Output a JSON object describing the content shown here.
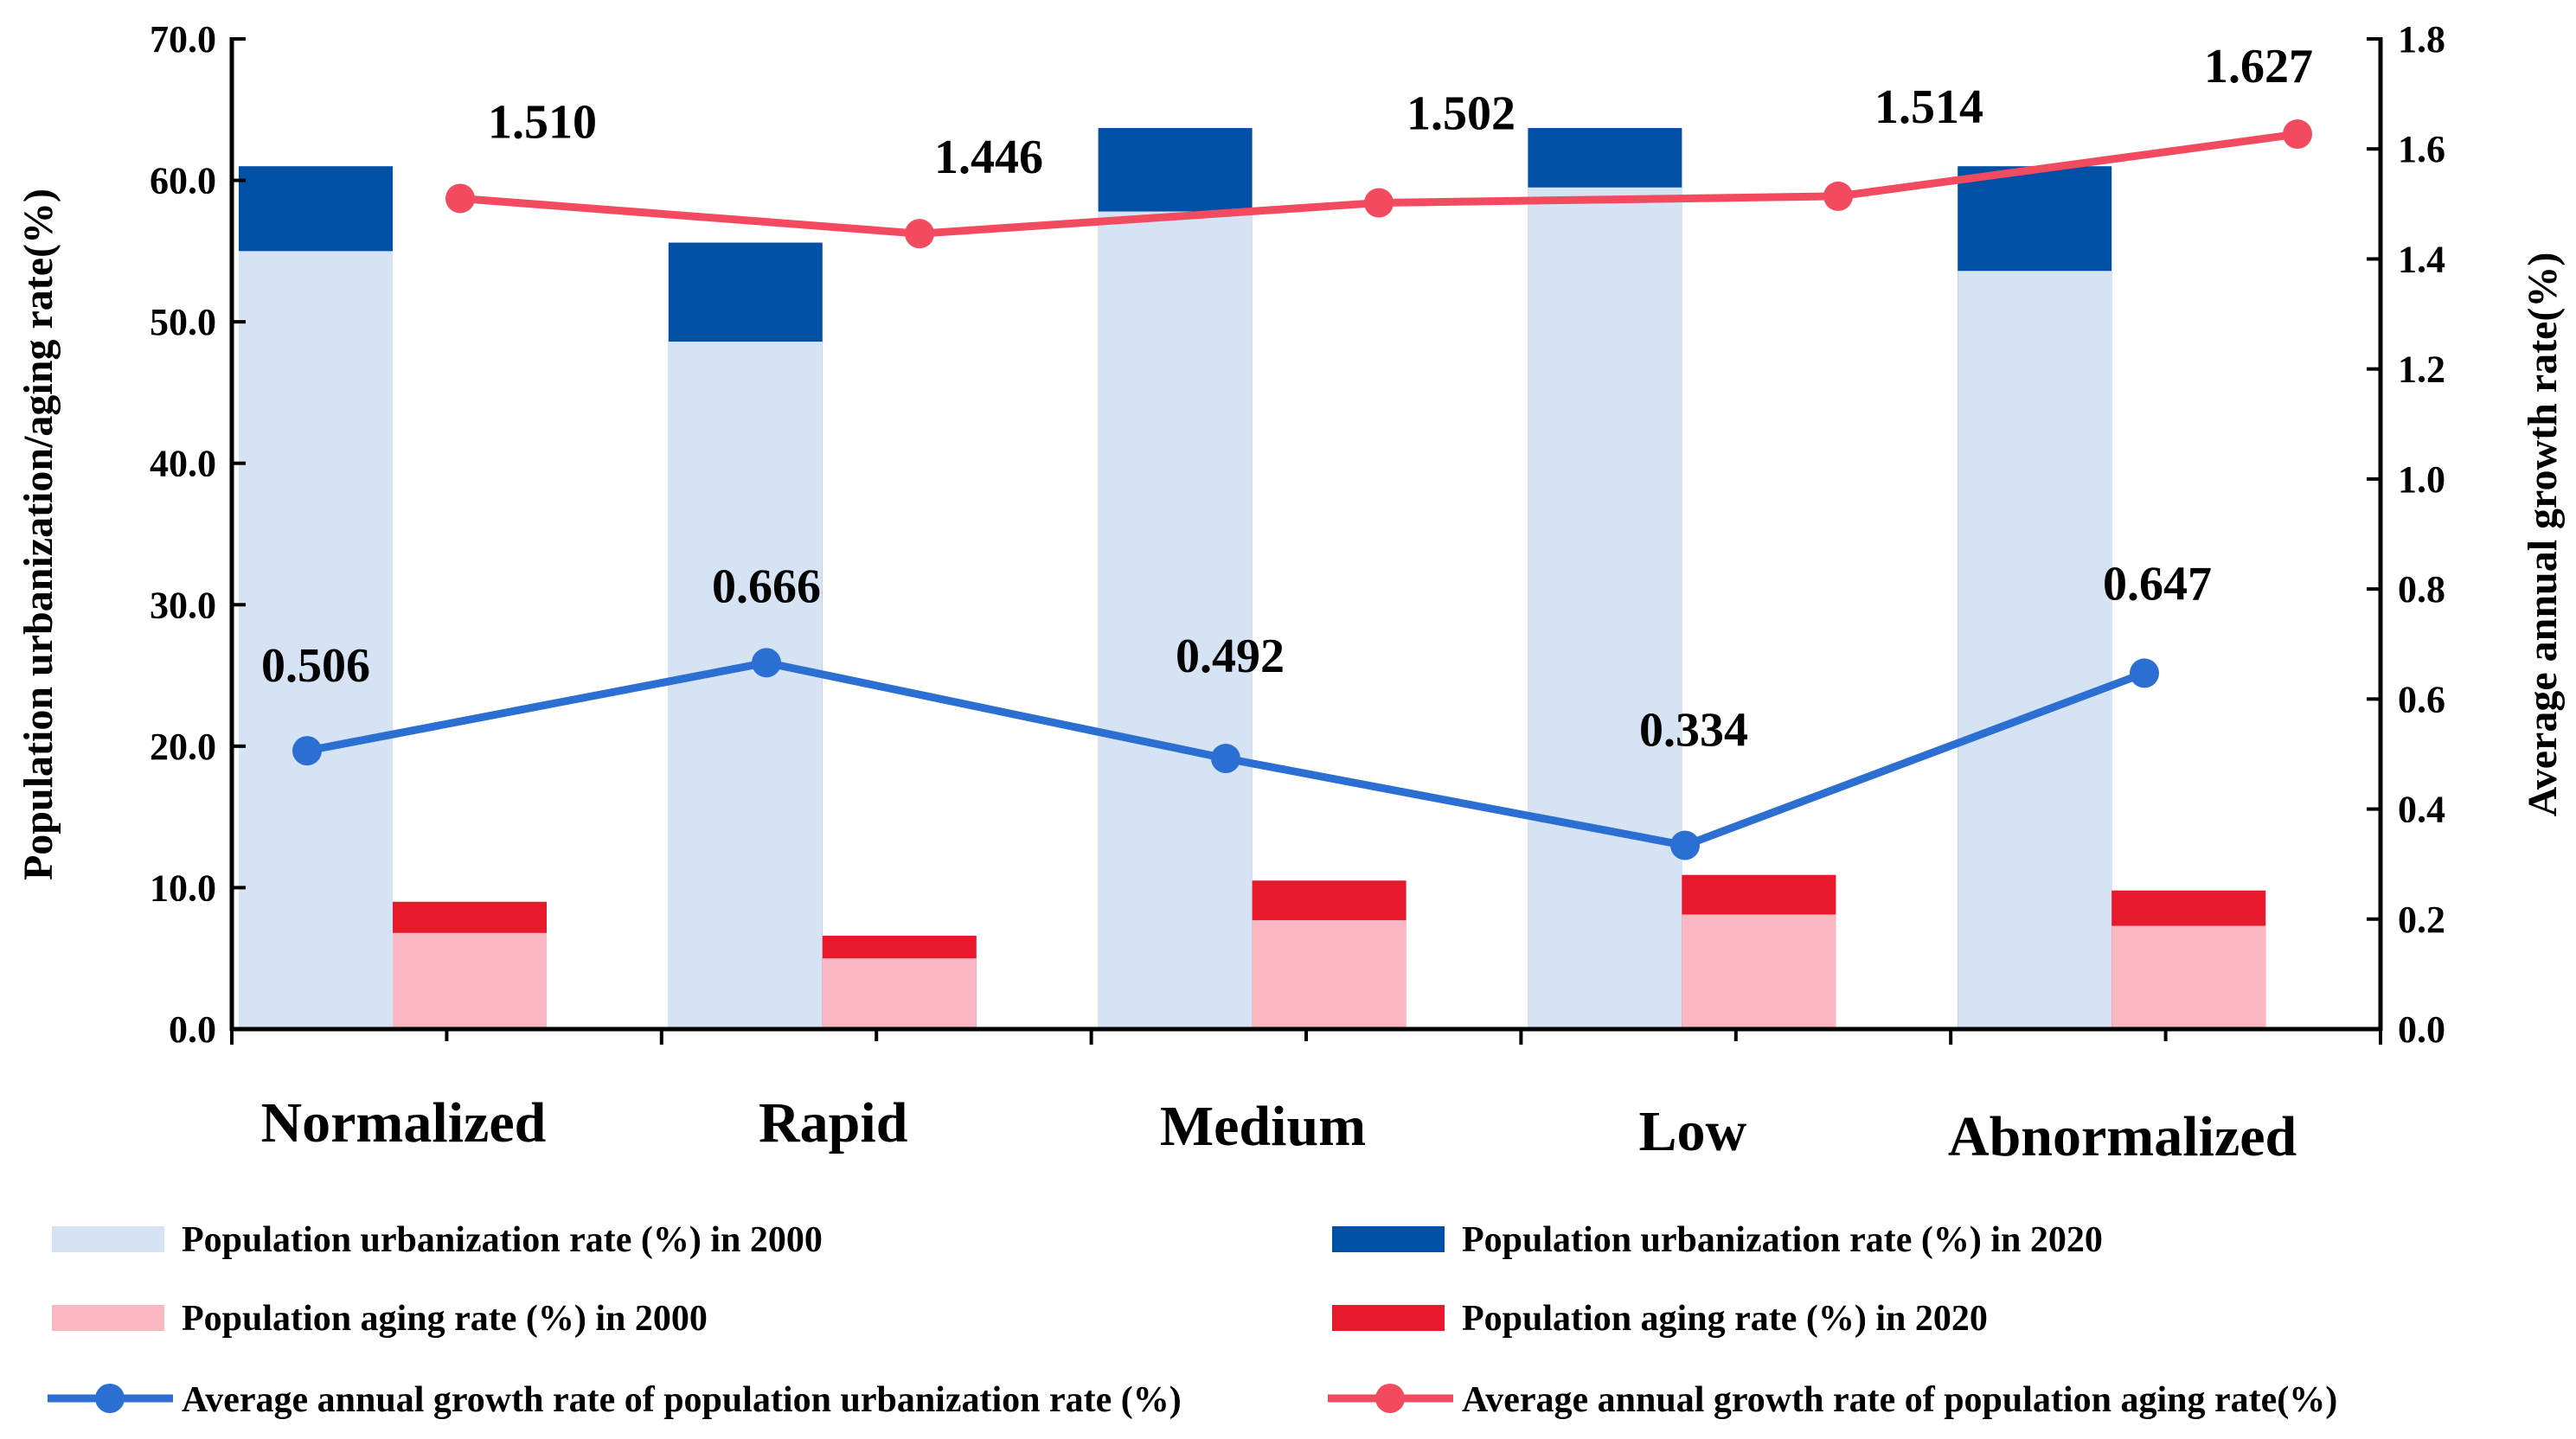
{
  "chart_data": {
    "type": "bar",
    "categories": [
      "Normalized",
      "Rapid",
      "Medium",
      "Low",
      "Abnormalized"
    ],
    "left_axis": {
      "label": "Population urbanization/aging rate(%)",
      "range": [
        0,
        70
      ],
      "ticks": [
        "0.0",
        "10.0",
        "20.0",
        "30.0",
        "40.0",
        "50.0",
        "60.0",
        "70.0"
      ]
    },
    "right_axis": {
      "label": "Average annual growth rate(%)",
      "range": [
        0,
        1.8
      ],
      "ticks": [
        "0.0",
        "0.2",
        "0.4",
        "0.6",
        "0.8",
        "1.0",
        "1.2",
        "1.4",
        "1.6",
        "1.8"
      ]
    },
    "series": [
      {
        "name": "Population urbanization rate (%) in 2000",
        "kind": "bar",
        "group": "urbanization",
        "layer": "base",
        "color": "#d6e3f5",
        "values": [
          55.0,
          48.6,
          57.8,
          59.5,
          53.6
        ]
      },
      {
        "name": "Population urbanization rate (%) in 2020",
        "kind": "bar",
        "group": "urbanization",
        "layer": "top",
        "color": "#0050a5",
        "values": [
          61.0,
          55.6,
          63.7,
          63.7,
          61.0
        ]
      },
      {
        "name": "Population aging rate (%) in 2000",
        "kind": "bar",
        "group": "aging",
        "layer": "base",
        "color": "#fbb8c2",
        "values": [
          6.8,
          5.0,
          7.7,
          8.1,
          7.3
        ]
      },
      {
        "name": "Population aging rate (%) in 2020",
        "kind": "bar",
        "group": "aging",
        "layer": "top",
        "color": "#e8192c",
        "values": [
          9.0,
          6.6,
          10.5,
          10.9,
          9.8
        ]
      },
      {
        "name": "Average annual growth rate of population urbanization rate (%)",
        "kind": "line",
        "axis": "right",
        "color": "#2a6fd1",
        "values": [
          0.506,
          0.666,
          0.492,
          0.334,
          0.647
        ],
        "labels": [
          "0.506",
          "0.666",
          "0.492",
          "0.334",
          "0.647"
        ]
      },
      {
        "name": "Average annual growth rate of population aging rate(%)",
        "kind": "line",
        "axis": "right",
        "color": "#f24b5f",
        "values": [
          1.51,
          1.446,
          1.502,
          1.514,
          1.627
        ],
        "labels": [
          "1.510",
          "1.446",
          "1.502",
          "1.514",
          "1.627"
        ]
      }
    ]
  }
}
